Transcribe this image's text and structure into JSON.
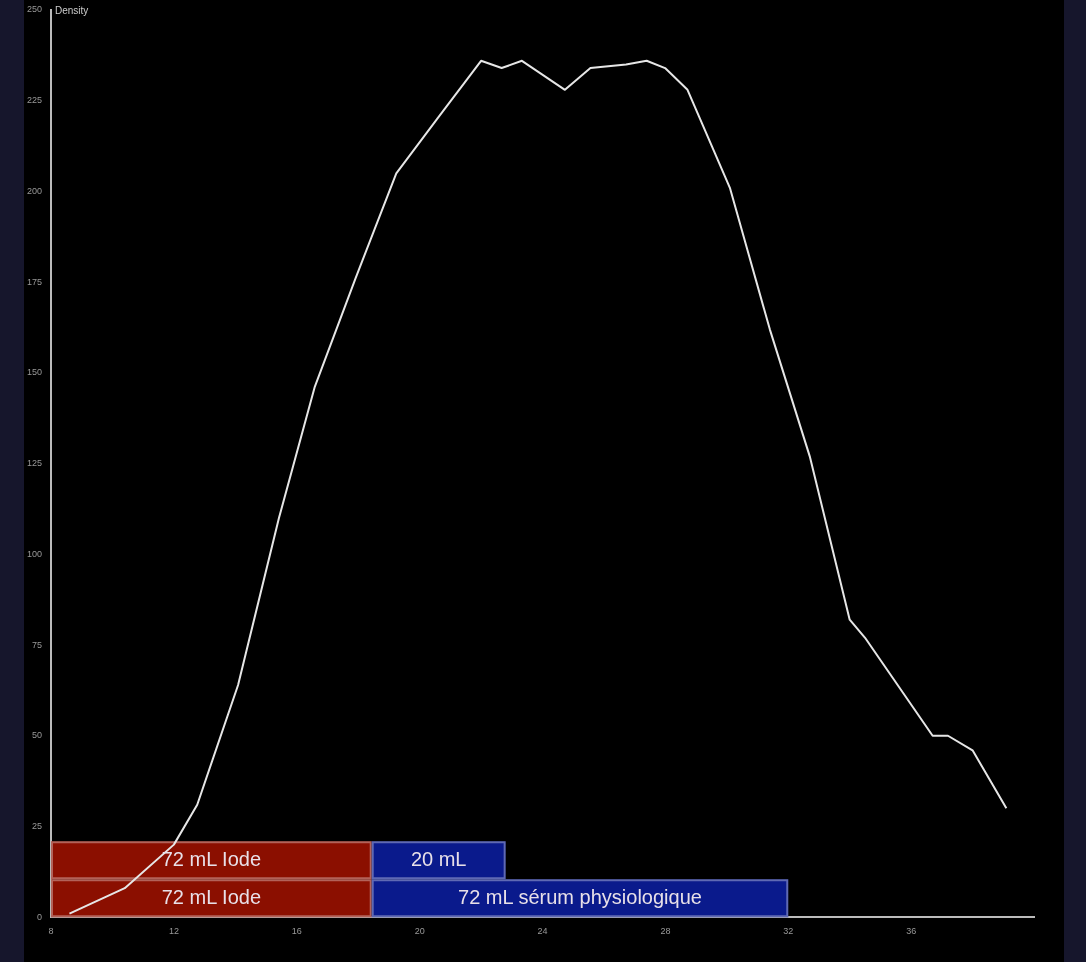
{
  "chart_data": {
    "type": "line",
    "ylabel": "Density",
    "x": [
      8.6,
      10.4,
      12.0,
      12.76,
      14.09,
      15.42,
      16.58,
      17.91,
      19.24,
      20.57,
      22.0,
      22.67,
      23.33,
      24.73,
      25.56,
      26.72,
      27.39,
      27.99,
      28.72,
      30.1,
      31.4,
      32.7,
      34.0,
      34.5,
      36.7,
      37.2,
      38.0,
      39.1
    ],
    "series": [
      {
        "color": "#e6e6e6",
        "values": [
          1,
          8,
          20,
          31,
          64,
          110,
          146,
          176,
          205,
          220,
          236,
          234,
          236,
          228,
          234,
          235,
          236,
          234,
          228,
          201,
          162,
          127,
          82,
          77,
          50,
          50,
          46,
          30
        ]
      }
    ],
    "xlim": [
      8,
      40
    ],
    "xticks": [
      8,
      12,
      16,
      20,
      24,
      28,
      32,
      36
    ],
    "ylim": [
      0,
      250
    ],
    "yticks": [
      0,
      25,
      50,
      75,
      100,
      125,
      150,
      175,
      200,
      225,
      250
    ],
    "grid": false,
    "legend": false,
    "marker": "none",
    "line_style": "solid",
    "bands": [
      {
        "axis": "x",
        "from": 8,
        "to": 18.44,
        "label": "72 mL Iode",
        "color": "#8b0f00"
      },
      {
        "axis": "x",
        "from": 18.44,
        "to": 22.8,
        "label": "20 mL",
        "color": "#0a1a8c"
      },
      {
        "axis": "x",
        "from": 8,
        "to": 18.44,
        "label": "72 mL Iode",
        "color": "#8b0f00"
      },
      {
        "axis": "x",
        "from": 18.44,
        "to": 32,
        "label": "72 mL sérum physiologique",
        "color": "#0a1a8c"
      }
    ]
  }
}
